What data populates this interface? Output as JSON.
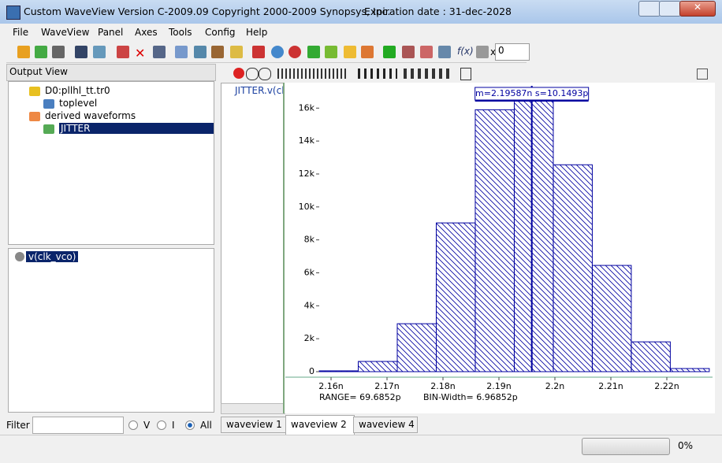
{
  "window": {
    "title": "Custom WaveView Version C-2009.09 Copyright 2000-2009 Synopsys, Inc.",
    "expiration": "Expiration date : 31-dec-2028"
  },
  "menu": [
    "File",
    "WaveView",
    "Panel",
    "Axes",
    "Tools",
    "Config",
    "Help"
  ],
  "toolbar": {
    "x_label": "x",
    "x_value": "0"
  },
  "output_view": {
    "title": "Output View",
    "tree": [
      "D0:pllhl_tt.tr0",
      "toplevel",
      "derived waveforms",
      "JITTER"
    ],
    "signals": [
      "v(clk_vco)"
    ]
  },
  "filter": {
    "label": "Filter",
    "options": [
      "V",
      "I",
      "All"
    ]
  },
  "waveview": {
    "signal": "JITTER.v(cl",
    "tabs": [
      "waveview 1",
      "waveview 2",
      "waveview 4"
    ]
  },
  "status": {
    "progress": "0%"
  },
  "chart_data": {
    "type": "histogram",
    "color": "#0000a0",
    "bins": [
      2.15789,
      2.16486,
      2.17183,
      2.1788,
      2.18577,
      2.19274,
      2.19971,
      2.20668,
      2.21365,
      2.22062,
      2.22759
    ],
    "values": [
      50,
      620,
      2910,
      9030,
      15900,
      16430,
      12560,
      6450,
      1810,
      190
    ],
    "xlim": [
      2.15183,
      2.22817
    ],
    "ylim": [
      0,
      17400
    ],
    "xticks": [
      {
        "value": 2.16,
        "label": "2.16n"
      },
      {
        "value": 2.17,
        "label": "2.17n"
      },
      {
        "value": 2.18,
        "label": "2.18n"
      },
      {
        "value": 2.19,
        "label": "2.19n"
      },
      {
        "value": 2.2,
        "label": "2.2n"
      },
      {
        "value": 2.21,
        "label": "2.21n"
      },
      {
        "value": 2.22,
        "label": "2.22n"
      }
    ],
    "yticks": [
      0,
      {
        "value": 2000,
        "label": "2k"
      },
      {
        "value": 4000,
        "label": "4k"
      },
      {
        "value": 6000,
        "label": "6k"
      },
      {
        "value": 8000,
        "label": "8k"
      },
      {
        "value": 10000,
        "label": "10k"
      },
      {
        "value": 12000,
        "label": "12k"
      },
      {
        "value": 14000,
        "label": "14k"
      },
      {
        "value": 16000,
        "label": "16k"
      }
    ],
    "annotations": [
      {
        "x": 2.19587,
        "text": "m=2.19587n s=10.1493p"
      }
    ],
    "range_label": "RANGE=  69.6852p",
    "bin_width_label": "BIN-Width=  6.96852p"
  }
}
